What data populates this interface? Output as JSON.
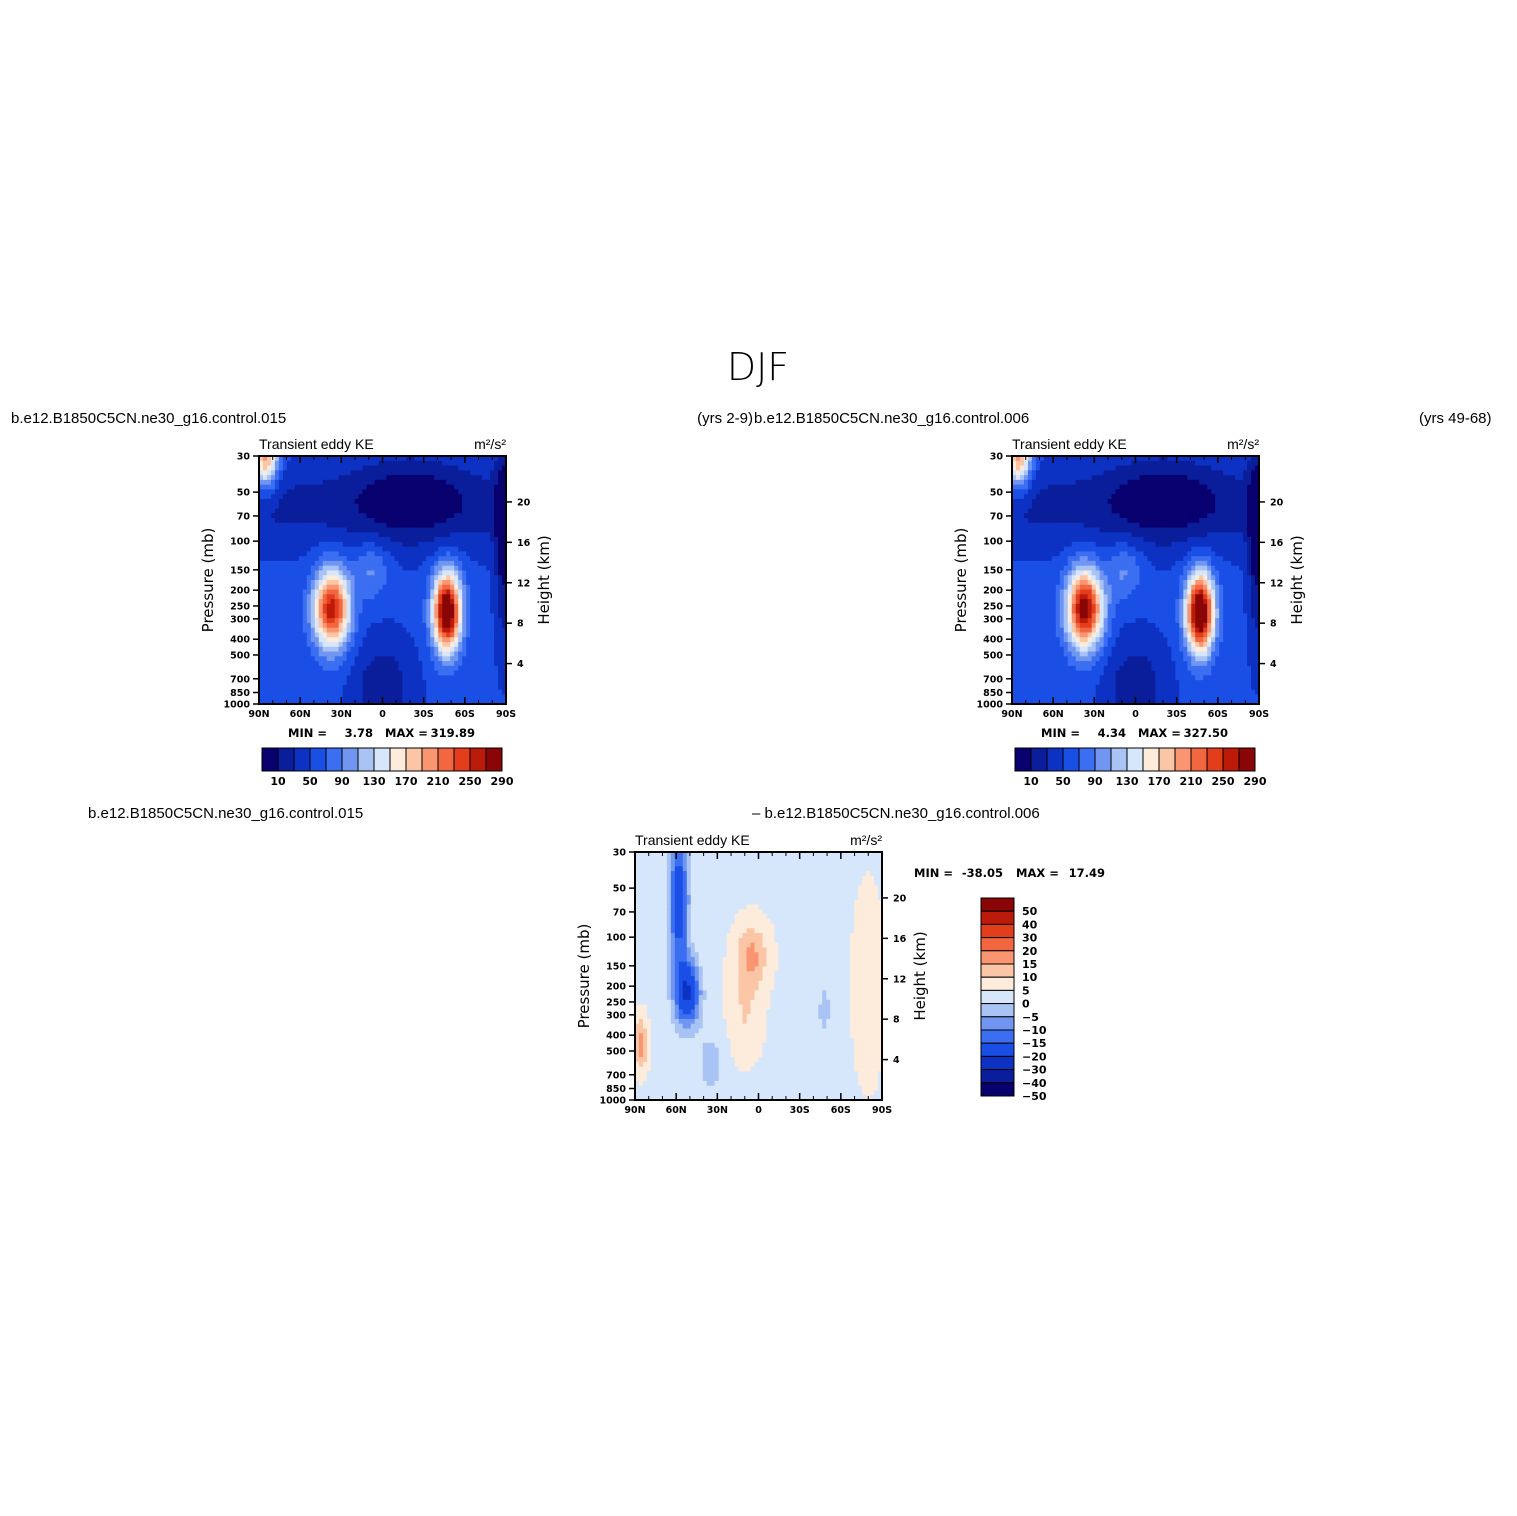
{
  "page_title": "DJF",
  "colors": {
    "levels": [
      "#08006e",
      "#0a1e9c",
      "#0d32c3",
      "#1a4fe6",
      "#3b6ef0",
      "#7096f2",
      "#a9c3f5",
      "#d6e6fb",
      "#fdebdc",
      "#fbc6a6",
      "#f99671",
      "#f26640",
      "#e33d1c",
      "#bd1b0a",
      "#8a0606"
    ],
    "diff_levels": [
      "#08006e",
      "#0a1e9c",
      "#0d32c3",
      "#1a4fe6",
      "#3b6ef0",
      "#7096f2",
      "#a9c3f5",
      "#d6e6fb",
      "#fdebdc",
      "#fbc6a6",
      "#f99671",
      "#f26640",
      "#e33d1c",
      "#bd1b0a",
      "#8a0606"
    ]
  },
  "panels": [
    {
      "case_label": "b.e12.B1850C5CN.ne30_g16.control.015",
      "years_label": "(yrs 2-9)",
      "variable": "Transient eddy KE",
      "units": "m²/s²",
      "min_label": "MIN =",
      "min_value": "3.78",
      "max_label": "MAX =",
      "max_value": "319.89"
    },
    {
      "case_label": "b.e12.B1850C5CN.ne30_g16.control.006",
      "years_label": "(yrs 49-68)",
      "variable": "Transient eddy KE",
      "units": "m²/s²",
      "min_label": "MIN =",
      "min_value": "4.34",
      "max_label": "MAX =",
      "max_value": "327.50"
    },
    {
      "case_label": "b.e12.B1850C5CN.ne30_g16.control.015",
      "case_label_2": "– b.e12.B1850C5CN.ne30_g16.control.006",
      "variable": "Transient eddy KE",
      "units": "m²/s²",
      "min_label": "MIN =",
      "min_value": "-38.05",
      "max_label": "MAX =",
      "max_value": "17.49"
    }
  ],
  "chart_data": [
    {
      "type": "heatmap",
      "title": "Transient eddy KE",
      "units": "m²/s²",
      "xlabel": "",
      "ylabel": "Pressure (mb)",
      "ylabel_right": "Height (km)",
      "x_ticks": [
        "90N",
        "60N",
        "30N",
        "0",
        "30S",
        "60S",
        "90S"
      ],
      "x_values": [
        90,
        60,
        30,
        0,
        -30,
        -60,
        -90
      ],
      "xlim": [
        90,
        -90
      ],
      "y_ticks": [
        30,
        50,
        70,
        100,
        150,
        200,
        250,
        300,
        400,
        500,
        700,
        850,
        1000
      ],
      "ylim": [
        1000,
        30
      ],
      "y_scale": "log",
      "y_right_ticks": [
        4,
        8,
        12,
        16,
        20
      ],
      "levels": [
        10,
        30,
        50,
        70,
        90,
        110,
        130,
        150,
        170,
        190,
        210,
        230,
        250,
        270,
        290
      ],
      "colorbar_labels": [
        "10",
        "50",
        "90",
        "130",
        "170",
        "210",
        "250",
        "290"
      ],
      "min": 3.78,
      "max": 319.89,
      "features": [
        {
          "lat": 37,
          "p": 260,
          "peak": 268
        },
        {
          "lat": -47,
          "p": 270,
          "peak": 319.89
        }
      ]
    },
    {
      "type": "heatmap",
      "title": "Transient eddy KE",
      "units": "m²/s²",
      "xlabel": "",
      "ylabel": "Pressure (mb)",
      "ylabel_right": "Height (km)",
      "x_ticks": [
        "90N",
        "60N",
        "30N",
        "0",
        "30S",
        "60S",
        "90S"
      ],
      "x_values": [
        90,
        60,
        30,
        0,
        -30,
        -60,
        -90
      ],
      "xlim": [
        90,
        -90
      ],
      "y_ticks": [
        30,
        50,
        70,
        100,
        150,
        200,
        250,
        300,
        400,
        500,
        700,
        850,
        1000
      ],
      "ylim": [
        1000,
        30
      ],
      "y_scale": "log",
      "y_right_ticks": [
        4,
        8,
        12,
        16,
        20
      ],
      "levels": [
        10,
        30,
        50,
        70,
        90,
        110,
        130,
        150,
        170,
        190,
        210,
        230,
        250,
        270,
        290
      ],
      "colorbar_labels": [
        "10",
        "50",
        "90",
        "130",
        "170",
        "210",
        "250",
        "290"
      ],
      "min": 4.34,
      "max": 327.5,
      "features": [
        {
          "lat": 37,
          "p": 260,
          "peak": 290
        },
        {
          "lat": -47,
          "p": 275,
          "peak": 327.5
        }
      ]
    },
    {
      "type": "heatmap",
      "title": "Transient eddy KE",
      "units": "m²/s²",
      "xlabel": "",
      "ylabel": "Pressure (mb)",
      "ylabel_right": "Height (km)",
      "x_ticks": [
        "90N",
        "60N",
        "30N",
        "0",
        "30S",
        "60S",
        "90S"
      ],
      "x_values": [
        90,
        60,
        30,
        0,
        -30,
        -60,
        -90
      ],
      "xlim": [
        90,
        -90
      ],
      "y_ticks": [
        30,
        50,
        70,
        100,
        150,
        200,
        250,
        300,
        400,
        500,
        700,
        850,
        1000
      ],
      "ylim": [
        1000,
        30
      ],
      "y_scale": "log",
      "y_right_ticks": [
        4,
        8,
        12,
        16,
        20
      ],
      "levels": [
        -50,
        -40,
        -30,
        -20,
        -15,
        -10,
        -5,
        0,
        5,
        10,
        15,
        20,
        30,
        40,
        50
      ],
      "colorbar_labels": [
        "50",
        "40",
        "30",
        "20",
        "15",
        "10",
        "5",
        "0",
        "−5",
        "−10",
        "−15",
        "−20",
        "−30",
        "−40",
        "−50"
      ],
      "min": -38.05,
      "max": 17.49,
      "features": [
        {
          "lat": 58,
          "p": 60,
          "peak": -28
        },
        {
          "lat": 52,
          "p": 220,
          "peak": -38.05
        },
        {
          "lat": 5,
          "p": 130,
          "peak": 14
        },
        {
          "lat": 86,
          "p": 450,
          "peak": 17.49
        }
      ]
    }
  ]
}
